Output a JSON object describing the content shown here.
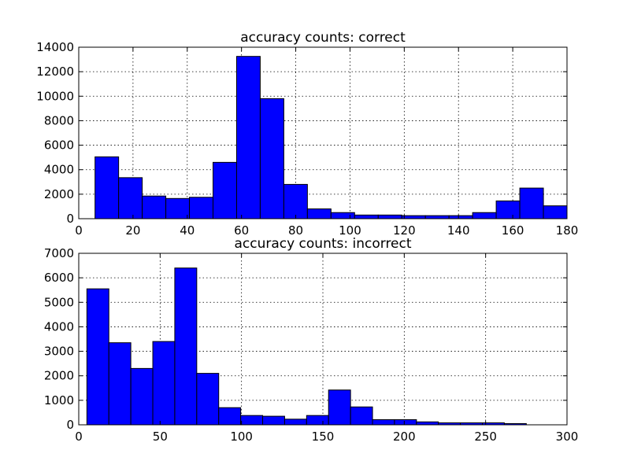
{
  "chart_data": [
    {
      "type": "bar",
      "title": "accuracy counts: correct",
      "xlim": [
        0,
        180
      ],
      "ylim": [
        0,
        14000
      ],
      "xticks": [
        "0",
        "20",
        "40",
        "60",
        "80",
        "100",
        "120",
        "140",
        "160",
        "180"
      ],
      "yticks": [
        "0",
        "2000",
        "4000",
        "6000",
        "8000",
        "10000",
        "12000",
        "14000"
      ],
      "grid": true,
      "bar_color": "#0000ff",
      "bin_edges": [
        6,
        14.7,
        23.4,
        32.1,
        40.8,
        49.5,
        58.2,
        66.9,
        75.6,
        84.3,
        93,
        101.7,
        110.4,
        119.1,
        127.8,
        136.5,
        145.2,
        153.9,
        162.6,
        171.3,
        180
      ],
      "values": [
        5050,
        3350,
        1850,
        1650,
        1750,
        4600,
        13250,
        9800,
        2800,
        800,
        500,
        300,
        300,
        250,
        250,
        250,
        500,
        1450,
        2500,
        1050
      ]
    },
    {
      "type": "bar",
      "title": "accuracy counts: incorrect",
      "xlim": [
        0,
        300
      ],
      "ylim": [
        0,
        7000
      ],
      "xticks": [
        "0",
        "50",
        "100",
        "150",
        "200",
        "250",
        "300"
      ],
      "yticks": [
        "0",
        "1000",
        "2000",
        "3000",
        "4000",
        "5000",
        "6000",
        "7000"
      ],
      "grid": true,
      "bar_color": "#0000ff",
      "bin_edges": [
        5,
        18.5,
        32,
        45.5,
        59,
        72.5,
        86,
        99.5,
        113,
        126.5,
        140,
        153.5,
        167,
        180.5,
        194,
        207.5,
        221,
        234.5,
        248,
        261.5,
        275
      ],
      "values": [
        5550,
        3350,
        2300,
        3400,
        6400,
        2100,
        700,
        380,
        350,
        230,
        380,
        1420,
        730,
        210,
        210,
        120,
        80,
        80,
        80,
        50
      ]
    }
  ]
}
